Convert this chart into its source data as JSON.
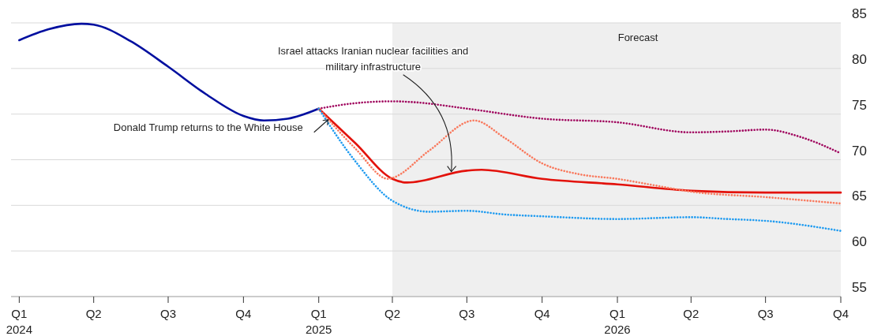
{
  "chart_data": {
    "type": "line",
    "xlim": [
      "2023-12-22",
      "2026-10-01"
    ],
    "ylim": [
      55,
      85
    ],
    "yticks": [
      55,
      60,
      65,
      70,
      75,
      80,
      85
    ],
    "xticks": [
      {
        "value": "2024-01-01",
        "label": "Q1\n2024"
      },
      {
        "value": "2024-04-01",
        "label": "Q2"
      },
      {
        "value": "2024-07-01",
        "label": "Q3"
      },
      {
        "value": "2024-10-01",
        "label": "Q4"
      },
      {
        "value": "2025-01-01",
        "label": "Q1\n2025"
      },
      {
        "value": "2025-04-01",
        "label": "Q2"
      },
      {
        "value": "2025-07-01",
        "label": "Q3"
      },
      {
        "value": "2025-10-01",
        "label": "Q4"
      },
      {
        "value": "2026-01-01",
        "label": "Q1\n2026"
      },
      {
        "value": "2026-04-01",
        "label": "Q2"
      },
      {
        "value": "2026-07-01",
        "label": "Q3"
      },
      {
        "value": "2026-10-01",
        "label": "Q4"
      }
    ],
    "grid": "y",
    "marker": "none",
    "bands": [
      {
        "axis": "x",
        "from": "2025-04-01",
        "to": "2026-10-01",
        "label": "Forecast",
        "color": "#efefef"
      }
    ],
    "annotations": [
      {
        "text": "Donald Trump returns to the White House",
        "x": "2025-01-01",
        "y": 75.6
      },
      {
        "text": "Israel attacks Iranian nuclear facilities and military infrastructure",
        "x": "2025-06-13",
        "y": 68.6
      }
    ],
    "series": [
      {
        "color": "#a0065e",
        "line_style": "dotted",
        "x": [
          "2025-01-01",
          "2025-02-15",
          "2025-04-01",
          "2025-04-28",
          "2025-07-01",
          "2025-10-01",
          "2026-01-01",
          "2026-04-01",
          "2026-05-16",
          "2026-07-01",
          "2026-08-16",
          "2026-10-01"
        ],
        "values": [
          75.6,
          76.2,
          76.4,
          76.3,
          75.6,
          74.5,
          74.1,
          73.0,
          73.1,
          73.3,
          72.4,
          70.7
        ]
      },
      {
        "color": "#f97a5e",
        "line_style": "dotted",
        "x": [
          "2025-01-01",
          "2025-02-15",
          "2025-03-27",
          "2025-04-01",
          "2025-05-16",
          "2025-07-10",
          "2025-08-16",
          "2025-10-01",
          "2025-11-16",
          "2026-01-01",
          "2026-02-15",
          "2026-04-01",
          "2026-07-01",
          "2026-10-01"
        ],
        "values": [
          75.6,
          71.2,
          67.9,
          68.0,
          71.0,
          74.3,
          72.4,
          69.6,
          68.4,
          67.9,
          67.2,
          66.5,
          65.9,
          65.2
        ]
      },
      {
        "color": "#1f9bf0",
        "line_style": "dotted",
        "x": [
          "2025-01-01",
          "2025-02-15",
          "2025-04-01",
          "2025-05-16",
          "2025-07-01",
          "2025-08-16",
          "2025-10-01",
          "2026-01-01",
          "2026-04-01",
          "2026-05-16",
          "2026-07-01",
          "2026-10-01"
        ],
        "values": [
          75.6,
          69.8,
          65.5,
          64.3,
          64.4,
          64.0,
          63.8,
          63.5,
          63.7,
          63.5,
          63.3,
          62.2
        ]
      },
      {
        "color": "#000f9f",
        "line_style": "solid",
        "x": [
          "2024-01-01",
          "2024-02-06",
          "2024-03-17",
          "2024-04-01",
          "2024-05-16",
          "2024-07-01",
          "2024-08-16",
          "2024-10-01",
          "2024-10-26",
          "2024-11-24",
          "2025-01-01"
        ],
        "values": [
          83.1,
          84.3,
          84.9,
          84.8,
          83.0,
          80.2,
          77.2,
          74.8,
          74.3,
          74.5,
          75.6
        ]
      },
      {
        "color": "#e3120b",
        "line_style": "solid",
        "x": [
          "2025-01-01",
          "2025-02-15",
          "2025-04-01",
          "2025-04-19",
          "2025-07-01",
          "2025-07-19",
          "2025-10-01",
          "2026-01-01",
          "2026-04-01",
          "2026-07-01",
          "2026-10-01"
        ],
        "values": [
          75.6,
          71.8,
          67.9,
          67.5,
          68.8,
          68.9,
          67.9,
          67.3,
          66.6,
          66.4,
          66.4
        ]
      }
    ]
  }
}
